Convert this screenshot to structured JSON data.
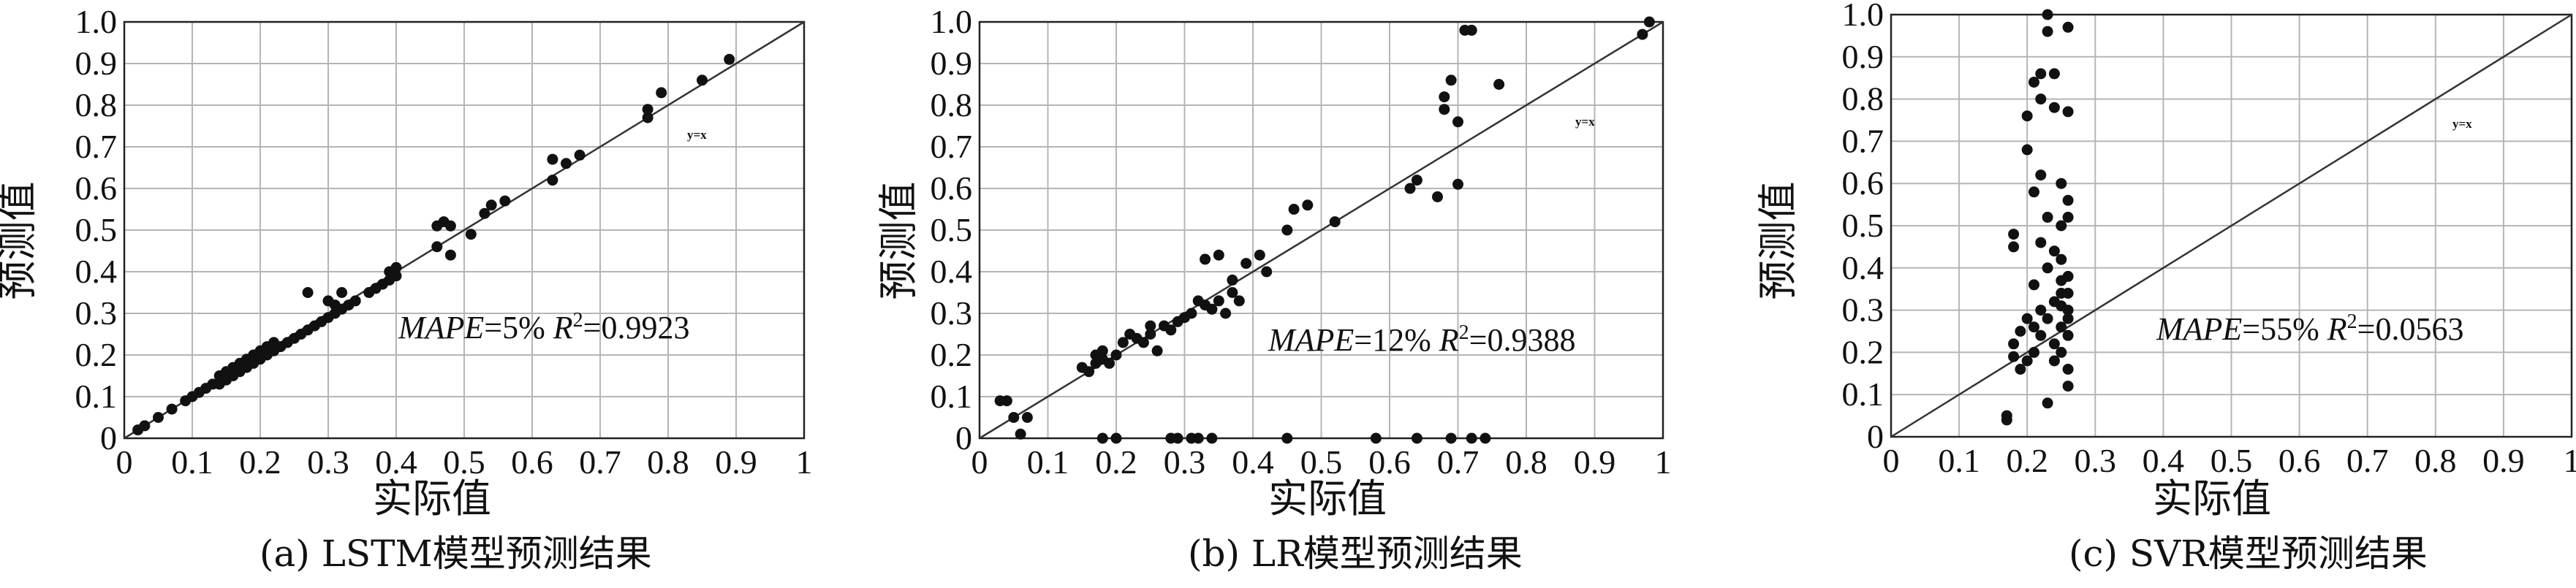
{
  "chart_data": [
    {
      "type": "scatter",
      "caption": "(a) LSTM模型预测结果",
      "xlabel": "实际值",
      "ylabel": "预测值",
      "xlim": [
        0,
        1
      ],
      "ylim": [
        0,
        1
      ],
      "xticks": [
        "0",
        "0.1",
        "0.2",
        "0.3",
        "0.4",
        "0.5",
        "0.6",
        "0.7",
        "0.8",
        "0.9",
        "1"
      ],
      "yticks": [
        "0",
        "0.1",
        "0.2",
        "0.3",
        "0.4",
        "0.5",
        "0.6",
        "0.7",
        "0.8",
        "0.9",
        "1.0"
      ],
      "grid": true,
      "reference_line": "y=x",
      "mape_label": "MAPE",
      "mape_value": "=5%",
      "r2_label": "R",
      "r2_value": "=0.9923",
      "points": [
        [
          0.02,
          0.02
        ],
        [
          0.03,
          0.03
        ],
        [
          0.05,
          0.05
        ],
        [
          0.07,
          0.07
        ],
        [
          0.09,
          0.09
        ],
        [
          0.1,
          0.1
        ],
        [
          0.11,
          0.11
        ],
        [
          0.12,
          0.12
        ],
        [
          0.13,
          0.13
        ],
        [
          0.14,
          0.13
        ],
        [
          0.14,
          0.15
        ],
        [
          0.15,
          0.14
        ],
        [
          0.15,
          0.16
        ],
        [
          0.16,
          0.15
        ],
        [
          0.16,
          0.17
        ],
        [
          0.17,
          0.16
        ],
        [
          0.17,
          0.18
        ],
        [
          0.18,
          0.17
        ],
        [
          0.18,
          0.19
        ],
        [
          0.19,
          0.18
        ],
        [
          0.19,
          0.2
        ],
        [
          0.2,
          0.19
        ],
        [
          0.2,
          0.21
        ],
        [
          0.21,
          0.2
        ],
        [
          0.21,
          0.22
        ],
        [
          0.22,
          0.21
        ],
        [
          0.22,
          0.23
        ],
        [
          0.23,
          0.22
        ],
        [
          0.24,
          0.23
        ],
        [
          0.25,
          0.24
        ],
        [
          0.26,
          0.25
        ],
        [
          0.27,
          0.26
        ],
        [
          0.28,
          0.27
        ],
        [
          0.29,
          0.28
        ],
        [
          0.3,
          0.29
        ],
        [
          0.31,
          0.3
        ],
        [
          0.31,
          0.32
        ],
        [
          0.32,
          0.31
        ],
        [
          0.33,
          0.32
        ],
        [
          0.34,
          0.33
        ],
        [
          0.27,
          0.35
        ],
        [
          0.3,
          0.33
        ],
        [
          0.32,
          0.35
        ],
        [
          0.36,
          0.35
        ],
        [
          0.37,
          0.36
        ],
        [
          0.38,
          0.37
        ],
        [
          0.39,
          0.38
        ],
        [
          0.39,
          0.4
        ],
        [
          0.4,
          0.39
        ],
        [
          0.4,
          0.41
        ],
        [
          0.46,
          0.46
        ],
        [
          0.46,
          0.51
        ],
        [
          0.47,
          0.52
        ],
        [
          0.48,
          0.44
        ],
        [
          0.48,
          0.51
        ],
        [
          0.51,
          0.49
        ],
        [
          0.53,
          0.54
        ],
        [
          0.54,
          0.56
        ],
        [
          0.56,
          0.57
        ],
        [
          0.63,
          0.62
        ],
        [
          0.63,
          0.67
        ],
        [
          0.65,
          0.66
        ],
        [
          0.67,
          0.68
        ],
        [
          0.77,
          0.77
        ],
        [
          0.77,
          0.79
        ],
        [
          0.79,
          0.83
        ],
        [
          0.85,
          0.86
        ],
        [
          0.89,
          0.91
        ]
      ]
    },
    {
      "type": "scatter",
      "caption": "(b) LR模型预测结果",
      "xlabel": "实际值",
      "ylabel": "预测值",
      "xlim": [
        0,
        1
      ],
      "ylim": [
        0,
        1
      ],
      "xticks": [
        "0",
        "0.1",
        "0.2",
        "0.3",
        "0.4",
        "0.5",
        "0.6",
        "0.7",
        "0.8",
        "0.9",
        "1"
      ],
      "yticks": [
        "0",
        "0.1",
        "0.2",
        "0.3",
        "0.4",
        "0.5",
        "0.6",
        "0.7",
        "0.8",
        "0.9",
        "1.0"
      ],
      "grid": true,
      "reference_line": "y=x",
      "mape_label": "MAPE",
      "mape_value": "=12%",
      "r2_label": "R",
      "r2_value": "=0.9388",
      "points": [
        [
          0.03,
          0.09
        ],
        [
          0.04,
          0.09
        ],
        [
          0.05,
          0.05
        ],
        [
          0.06,
          0.01
        ],
        [
          0.07,
          0.05
        ],
        [
          0.15,
          0.17
        ],
        [
          0.16,
          0.16
        ],
        [
          0.17,
          0.18
        ],
        [
          0.17,
          0.2
        ],
        [
          0.18,
          0.19
        ],
        [
          0.18,
          0.21
        ],
        [
          0.19,
          0.18
        ],
        [
          0.2,
          0.2
        ],
        [
          0.21,
          0.23
        ],
        [
          0.22,
          0.25
        ],
        [
          0.23,
          0.24
        ],
        [
          0.24,
          0.23
        ],
        [
          0.25,
          0.25
        ],
        [
          0.25,
          0.27
        ],
        [
          0.26,
          0.21
        ],
        [
          0.27,
          0.27
        ],
        [
          0.28,
          0.26
        ],
        [
          0.29,
          0.28
        ],
        [
          0.3,
          0.29
        ],
        [
          0.31,
          0.3
        ],
        [
          0.32,
          0.33
        ],
        [
          0.33,
          0.32
        ],
        [
          0.34,
          0.31
        ],
        [
          0.35,
          0.33
        ],
        [
          0.36,
          0.3
        ],
        [
          0.37,
          0.35
        ],
        [
          0.38,
          0.33
        ],
        [
          0.33,
          0.43
        ],
        [
          0.35,
          0.44
        ],
        [
          0.37,
          0.38
        ],
        [
          0.39,
          0.42
        ],
        [
          0.41,
          0.44
        ],
        [
          0.42,
          0.4
        ],
        [
          0.45,
          0.5
        ],
        [
          0.46,
          0.55
        ],
        [
          0.48,
          0.56
        ],
        [
          0.52,
          0.52
        ],
        [
          0.63,
          0.6
        ],
        [
          0.64,
          0.62
        ],
        [
          0.67,
          0.58
        ],
        [
          0.68,
          0.79
        ],
        [
          0.68,
          0.82
        ],
        [
          0.69,
          0.86
        ],
        [
          0.7,
          0.76
        ],
        [
          0.7,
          0.61
        ],
        [
          0.71,
          0.98
        ],
        [
          0.72,
          0.98
        ],
        [
          0.76,
          0.85
        ],
        [
          0.97,
          0.97
        ],
        [
          0.98,
          1.0
        ],
        [
          0.18,
          0.0
        ],
        [
          0.2,
          0.0
        ],
        [
          0.28,
          0.0
        ],
        [
          0.29,
          0.0
        ],
        [
          0.31,
          0.0
        ],
        [
          0.32,
          0.0
        ],
        [
          0.34,
          0.0
        ],
        [
          0.45,
          0.0
        ],
        [
          0.58,
          0.0
        ],
        [
          0.64,
          0.0
        ],
        [
          0.69,
          0.0
        ],
        [
          0.72,
          0.0
        ],
        [
          0.74,
          0.0
        ]
      ]
    },
    {
      "type": "scatter",
      "caption": "(c) SVR模型预测结果",
      "xlabel": "实际值",
      "ylabel": "预测值",
      "xlim": [
        0,
        1
      ],
      "ylim": [
        0,
        1
      ],
      "xticks": [
        "0",
        "0.1",
        "0.2",
        "0.3",
        "0.4",
        "0.5",
        "0.6",
        "0.7",
        "0.8",
        "0.9",
        "1"
      ],
      "yticks": [
        "0",
        "0.1",
        "0.2",
        "0.3",
        "0.4",
        "0.5",
        "0.6",
        "0.7",
        "0.8",
        "0.9",
        "1.0"
      ],
      "grid": true,
      "reference_line": "y=x",
      "mape_label": "MAPE",
      "mape_value": "=55%",
      "r2_label": "R",
      "r2_value": "=0.0563",
      "points": [
        [
          0.17,
          0.04
        ],
        [
          0.17,
          0.05
        ],
        [
          0.18,
          0.19
        ],
        [
          0.18,
          0.22
        ],
        [
          0.18,
          0.45
        ],
        [
          0.18,
          0.48
        ],
        [
          0.19,
          0.16
        ],
        [
          0.19,
          0.25
        ],
        [
          0.2,
          0.18
        ],
        [
          0.2,
          0.28
        ],
        [
          0.2,
          0.76
        ],
        [
          0.2,
          0.68
        ],
        [
          0.21,
          0.2
        ],
        [
          0.21,
          0.26
        ],
        [
          0.21,
          0.36
        ],
        [
          0.21,
          0.58
        ],
        [
          0.21,
          0.84
        ],
        [
          0.22,
          0.8
        ],
        [
          0.22,
          0.62
        ],
        [
          0.22,
          0.46
        ],
        [
          0.22,
          0.3
        ],
        [
          0.22,
          0.24
        ],
        [
          0.22,
          0.86
        ],
        [
          0.23,
          0.08
        ],
        [
          0.23,
          0.96
        ],
        [
          0.23,
          1.0
        ],
        [
          0.23,
          0.4
        ],
        [
          0.23,
          0.28
        ],
        [
          0.23,
          0.52
        ],
        [
          0.24,
          0.18
        ],
        [
          0.24,
          0.32
        ],
        [
          0.24,
          0.44
        ],
        [
          0.24,
          0.86
        ],
        [
          0.24,
          0.78
        ],
        [
          0.25,
          0.34
        ],
        [
          0.25,
          0.26
        ],
        [
          0.25,
          0.2
        ],
        [
          0.25,
          0.5
        ],
        [
          0.25,
          0.6
        ],
        [
          0.25,
          0.42
        ],
        [
          0.26,
          0.12
        ],
        [
          0.26,
          0.24
        ],
        [
          0.26,
          0.3
        ],
        [
          0.26,
          0.38
        ],
        [
          0.26,
          0.52
        ],
        [
          0.26,
          0.56
        ],
        [
          0.26,
          0.97
        ],
        [
          0.26,
          0.77
        ],
        [
          0.26,
          0.28
        ],
        [
          0.26,
          0.34
        ],
        [
          0.26,
          0.16
        ],
        [
          0.25,
          0.37
        ],
        [
          0.25,
          0.31
        ],
        [
          0.24,
          0.22
        ]
      ]
    }
  ]
}
